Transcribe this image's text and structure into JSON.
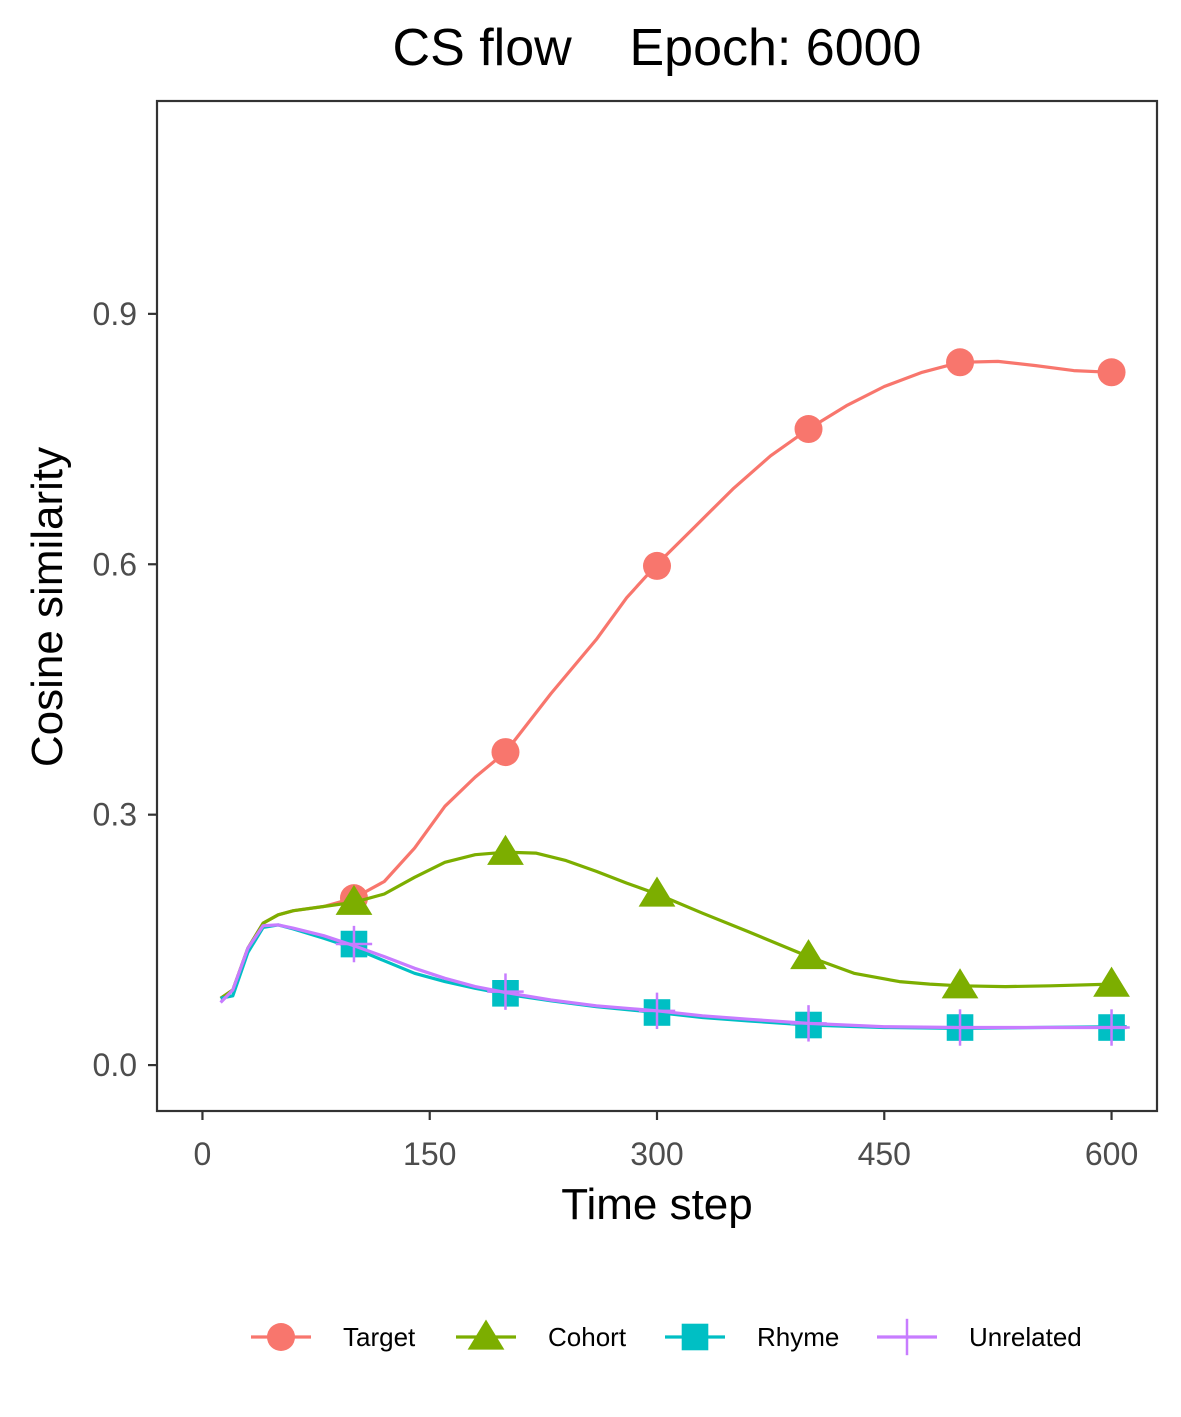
{
  "chart_data": {
    "type": "line",
    "title": "CS flow    Epoch: 6000",
    "xlabel": "Time step",
    "ylabel": "Cosine similarity",
    "xlim": [
      -30,
      630
    ],
    "ylim": [
      -0.055,
      1.155
    ],
    "x_ticks": [
      0,
      150,
      300,
      450,
      600
    ],
    "x_tick_labels": [
      "0",
      "150",
      "300",
      "450",
      "600"
    ],
    "y_ticks": [
      0.0,
      0.3,
      0.6,
      0.9
    ],
    "y_tick_labels": [
      "0.0",
      "0.3",
      "0.6",
      "0.9"
    ],
    "grid": false,
    "legend_position": "bottom",
    "series": [
      {
        "name": "Target",
        "color": "#F8766D",
        "marker": "circle",
        "line": [
          [
            12,
            0.08
          ],
          [
            20,
            0.09
          ],
          [
            30,
            0.14
          ],
          [
            40,
            0.17
          ],
          [
            50,
            0.18
          ],
          [
            60,
            0.185
          ],
          [
            80,
            0.19
          ],
          [
            100,
            0.2
          ],
          [
            120,
            0.22
          ],
          [
            140,
            0.26
          ],
          [
            160,
            0.31
          ],
          [
            180,
            0.345
          ],
          [
            200,
            0.375
          ],
          [
            230,
            0.445
          ],
          [
            260,
            0.51
          ],
          [
            280,
            0.56
          ],
          [
            300,
            0.6
          ],
          [
            325,
            0.645
          ],
          [
            350,
            0.69
          ],
          [
            375,
            0.73
          ],
          [
            400,
            0.762
          ],
          [
            425,
            0.79
          ],
          [
            450,
            0.813
          ],
          [
            475,
            0.83
          ],
          [
            500,
            0.842
          ],
          [
            525,
            0.843
          ],
          [
            550,
            0.838
          ],
          [
            575,
            0.832
          ],
          [
            600,
            0.83
          ]
        ],
        "markers": [
          [
            100,
            0.2
          ],
          [
            200,
            0.375
          ],
          [
            300,
            0.598
          ],
          [
            400,
            0.762
          ],
          [
            500,
            0.842
          ],
          [
            600,
            0.83
          ]
        ]
      },
      {
        "name": "Cohort",
        "color": "#7CAE00",
        "marker": "triangle",
        "line": [
          [
            12,
            0.08
          ],
          [
            20,
            0.09
          ],
          [
            30,
            0.14
          ],
          [
            40,
            0.17
          ],
          [
            50,
            0.18
          ],
          [
            60,
            0.185
          ],
          [
            80,
            0.19
          ],
          [
            100,
            0.195
          ],
          [
            120,
            0.205
          ],
          [
            140,
            0.225
          ],
          [
            160,
            0.243
          ],
          [
            180,
            0.252
          ],
          [
            200,
            0.255
          ],
          [
            220,
            0.254
          ],
          [
            240,
            0.245
          ],
          [
            260,
            0.232
          ],
          [
            280,
            0.218
          ],
          [
            300,
            0.205
          ],
          [
            330,
            0.182
          ],
          [
            360,
            0.16
          ],
          [
            400,
            0.13
          ],
          [
            430,
            0.11
          ],
          [
            460,
            0.1
          ],
          [
            480,
            0.097
          ],
          [
            500,
            0.095
          ],
          [
            530,
            0.094
          ],
          [
            560,
            0.095
          ],
          [
            600,
            0.097
          ]
        ],
        "markers": [
          [
            100,
            0.195
          ],
          [
            200,
            0.255
          ],
          [
            300,
            0.205
          ],
          [
            400,
            0.13
          ],
          [
            500,
            0.095
          ],
          [
            600,
            0.097
          ]
        ]
      },
      {
        "name": "Rhyme",
        "color": "#00BFC4",
        "marker": "square",
        "line": [
          [
            12,
            0.08
          ],
          [
            20,
            0.083
          ],
          [
            30,
            0.135
          ],
          [
            40,
            0.165
          ],
          [
            50,
            0.168
          ],
          [
            60,
            0.163
          ],
          [
            80,
            0.152
          ],
          [
            100,
            0.14
          ],
          [
            120,
            0.125
          ],
          [
            140,
            0.11
          ],
          [
            160,
            0.1
          ],
          [
            180,
            0.092
          ],
          [
            200,
            0.085
          ],
          [
            230,
            0.077
          ],
          [
            260,
            0.07
          ],
          [
            300,
            0.063
          ],
          [
            330,
            0.057
          ],
          [
            360,
            0.053
          ],
          [
            400,
            0.048
          ],
          [
            450,
            0.045
          ],
          [
            500,
            0.044
          ],
          [
            550,
            0.045
          ],
          [
            600,
            0.046
          ],
          [
            610,
            0.046
          ]
        ],
        "markers": [
          [
            100,
            0.145
          ],
          [
            200,
            0.086
          ],
          [
            300,
            0.063
          ],
          [
            400,
            0.048
          ],
          [
            500,
            0.045
          ],
          [
            600,
            0.045
          ]
        ]
      },
      {
        "name": "Unrelated",
        "color": "#C77CFF",
        "marker": "plus",
        "line": [
          [
            12,
            0.075
          ],
          [
            20,
            0.09
          ],
          [
            30,
            0.14
          ],
          [
            40,
            0.167
          ],
          [
            50,
            0.168
          ],
          [
            60,
            0.164
          ],
          [
            80,
            0.155
          ],
          [
            100,
            0.143
          ],
          [
            120,
            0.13
          ],
          [
            140,
            0.116
          ],
          [
            160,
            0.104
          ],
          [
            180,
            0.094
          ],
          [
            200,
            0.087
          ],
          [
            230,
            0.078
          ],
          [
            260,
            0.071
          ],
          [
            300,
            0.065
          ],
          [
            330,
            0.059
          ],
          [
            360,
            0.055
          ],
          [
            400,
            0.05
          ],
          [
            450,
            0.046
          ],
          [
            500,
            0.045
          ],
          [
            550,
            0.045
          ],
          [
            600,
            0.045
          ],
          [
            610,
            0.045
          ]
        ],
        "markers": [
          [
            100,
            0.145
          ],
          [
            200,
            0.088
          ],
          [
            300,
            0.065
          ],
          [
            400,
            0.05
          ],
          [
            500,
            0.045
          ],
          [
            600,
            0.045
          ]
        ]
      }
    ]
  }
}
